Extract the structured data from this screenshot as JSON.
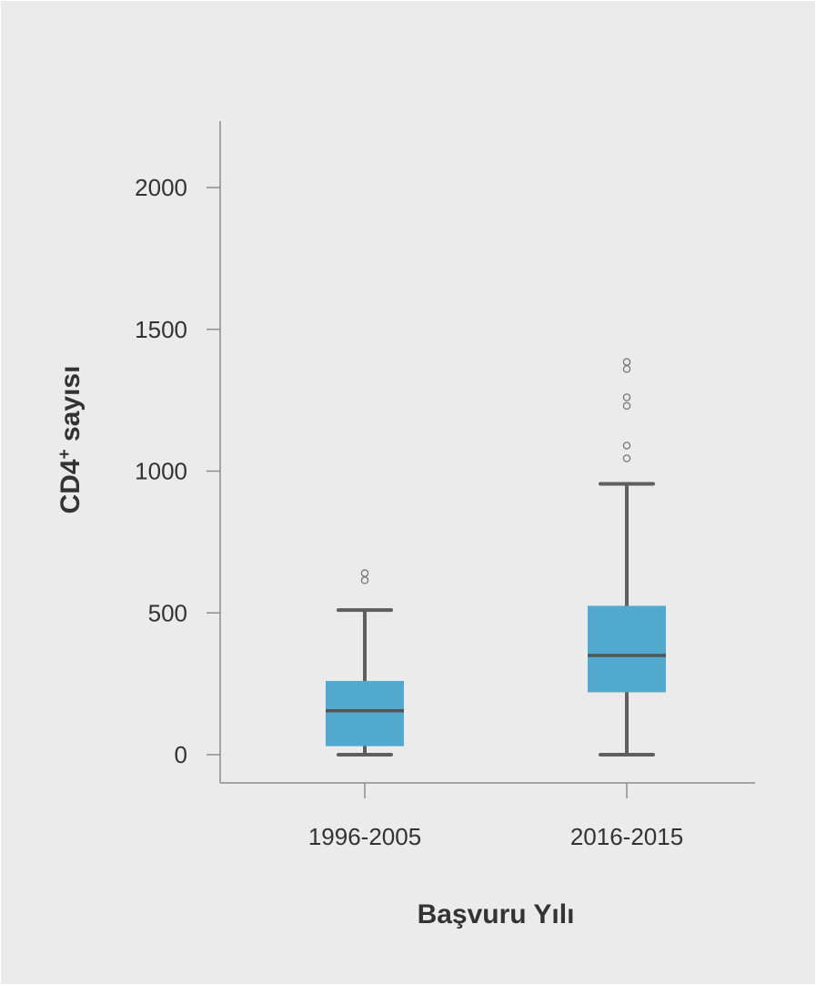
{
  "chart_data": {
    "type": "boxplot",
    "xlabel": "Başvuru Yılı",
    "ylabel_main": "CD4",
    "ylabel_sup": "+",
    "ylabel_tail": " sayısı",
    "ylim": [
      -100,
      2250
    ],
    "yticks": [
      0,
      500,
      1000,
      1500,
      2000
    ],
    "box_color": "#51a9ce",
    "categories": [
      "1996-2005",
      "2016-2015"
    ],
    "boxes": [
      {
        "whisker_low": 0,
        "q1": 30,
        "median": 155,
        "q3": 260,
        "whisker_high": 510,
        "outliers": [
          615,
          640
        ]
      },
      {
        "whisker_low": 0,
        "q1": 220,
        "median": 350,
        "q3": 525,
        "whisker_high": 955,
        "outliers": [
          1045,
          1090,
          1230,
          1260,
          1360,
          1385
        ]
      }
    ]
  }
}
